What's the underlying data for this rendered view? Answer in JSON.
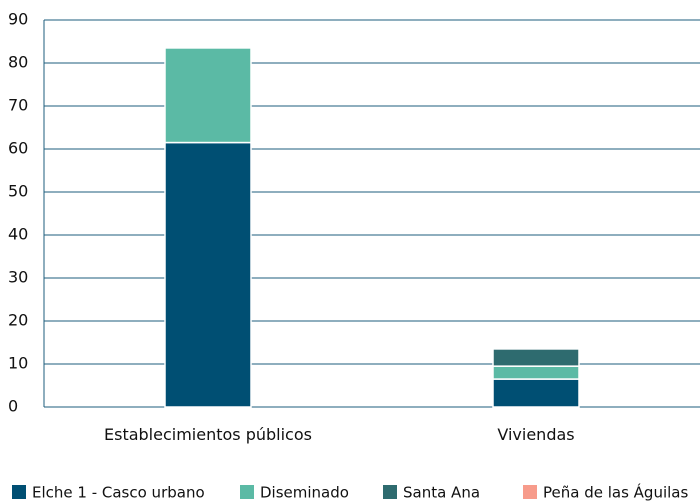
{
  "chart_data": {
    "type": "stacked_bar",
    "categories": [
      "Establecimientos públicos",
      "Viviendas"
    ],
    "series": [
      {
        "name": "Elche 1 - Casco urbano",
        "color": "#004f73",
        "values": [
          61.5,
          6.5
        ]
      },
      {
        "name": "Diseminado",
        "color": "#5bbaa5",
        "values": [
          22,
          3
        ]
      },
      {
        "name": "Santa Ana",
        "color": "#2e6b6f",
        "values": [
          0,
          4
        ]
      },
      {
        "name": "Peña de las Águilas",
        "color": "#f79b8b",
        "values": [
          0,
          0
        ]
      }
    ],
    "ylim": [
      0,
      90
    ],
    "yticks": [
      0,
      10,
      20,
      30,
      40,
      50,
      60,
      70,
      80,
      90
    ],
    "grid": true
  }
}
